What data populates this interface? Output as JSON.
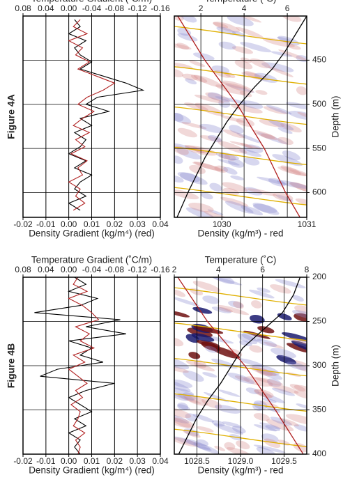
{
  "chart_data": [
    {
      "type": "line",
      "panel_label": "Figure 4A",
      "x2_label": "Temperature Gradient (˚C/m)",
      "x_label": "Density Gradient (kg/m⁴) (red)",
      "x2lim": [
        0.08,
        -0.16
      ],
      "x2ticks": [
        0.08,
        0.04,
        {
          "value": 0,
          "label": "0.00"
        },
        -0.04,
        -0.08,
        -0.12,
        -0.16
      ],
      "xlim": [
        -0.02,
        0.04
      ],
      "xticks": [
        -0.02,
        -0.01,
        {
          "value": 0,
          "label": "0.00"
        },
        0.01,
        0.02,
        0.03,
        0.04
      ],
      "ylim": [
        400,
        628
      ],
      "yticks": [
        450,
        500,
        550,
        600
      ],
      "y_inverted": true,
      "show_ytick_labels": false,
      "grid": true,
      "series": [
        {
          "name": "Temperature Gradient",
          "color": "#000000",
          "axis": "x2",
          "depth": [
            404,
            412,
            420,
            428,
            436,
            444,
            452,
            460,
            468,
            476,
            484,
            492,
            500,
            508,
            516,
            524,
            532,
            540,
            548,
            556,
            564,
            572,
            580,
            588,
            596,
            604,
            612,
            620
          ],
          "values": [
            -0.01,
            -0.02,
            0.0,
            -0.03,
            -0.01,
            -0.02,
            -0.04,
            -0.02,
            -0.06,
            -0.1,
            -0.13,
            -0.05,
            -0.03,
            -0.07,
            -0.02,
            -0.04,
            -0.01,
            -0.03,
            -0.02,
            0.0,
            -0.03,
            -0.01,
            -0.04,
            -0.02,
            -0.01,
            -0.03,
            0.0,
            -0.02
          ]
        },
        {
          "name": "Density Gradient",
          "color": "#b02020",
          "depth": [
            404,
            412,
            420,
            428,
            436,
            444,
            452,
            460,
            468,
            476,
            484,
            492,
            500,
            508,
            516,
            524,
            532,
            540,
            548,
            556,
            564,
            572,
            580,
            588,
            596,
            604,
            612,
            620
          ],
          "values": [
            0.005,
            0.002,
            0.008,
            0.0,
            0.006,
            0.003,
            0.009,
            0.004,
            0.012,
            0.02,
            0.015,
            0.008,
            0.004,
            0.011,
            0.006,
            0.002,
            0.009,
            0.003,
            0.007,
            0.001,
            0.008,
            0.004,
            0.006,
            0.0,
            0.005,
            0.003,
            0.007,
            0.002
          ]
        }
      ]
    },
    {
      "type": "line",
      "x2_label": "Temperature (˚C)",
      "x_label": "Density (kg/m³) - red",
      "y_label": "Depth (m)",
      "x2lim": [
        0.77,
        6.9
      ],
      "x2ticks": [
        2,
        4,
        6
      ],
      "xlim": [
        1029.44,
        1031
      ],
      "xticks": [
        1030,
        1031
      ],
      "ylim": [
        400,
        628
      ],
      "yticks": [
        450,
        500,
        550,
        600
      ],
      "y_inverted": true,
      "show_ytick_labels": true,
      "grid": true,
      "seismic": true,
      "series": [
        {
          "name": "Temperature",
          "color": "#000000",
          "axis": "x2",
          "depth": [
            400,
            420,
            440,
            460,
            480,
            500,
            520,
            540,
            560,
            580,
            600,
            628
          ],
          "values": [
            6.9,
            6.4,
            5.9,
            5.3,
            4.5,
            3.8,
            3.2,
            2.7,
            2.2,
            1.8,
            1.4,
            0.9
          ]
        },
        {
          "name": "Density",
          "color": "#b02020",
          "depth": [
            400,
            450,
            500,
            550,
            600,
            628
          ],
          "values": [
            1029.48,
            1029.8,
            1030.18,
            1030.5,
            1030.75,
            1030.92
          ]
        }
      ]
    },
    {
      "type": "line",
      "panel_label": "Figure 4B",
      "x2_label": "Temperature Gradient (˚C/m)",
      "x_label": "Density Gradient (kg/m⁴) (red)",
      "x2lim": [
        0.08,
        -0.16
      ],
      "x2ticks": [
        0.08,
        0.04,
        {
          "value": 0,
          "label": "0.00"
        },
        -0.04,
        -0.08,
        -0.12,
        -0.16
      ],
      "xlim": [
        -0.02,
        0.04
      ],
      "xticks": [
        -0.02,
        -0.01,
        {
          "value": 0,
          "label": "0.00"
        },
        0.01,
        0.02,
        0.03,
        0.04
      ],
      "ylim": [
        200,
        400
      ],
      "yticks": [
        250,
        300,
        350
      ],
      "y_inverted": true,
      "show_ytick_labels": false,
      "grid": true,
      "series": [
        {
          "name": "Temperature Gradient",
          "color": "#000000",
          "axis": "x2",
          "depth": [
            200,
            208,
            216,
            224,
            232,
            240,
            248,
            256,
            264,
            272,
            280,
            288,
            296,
            304,
            312,
            320,
            328,
            336,
            344,
            352,
            360,
            368,
            376,
            384,
            392,
            400
          ],
          "values": [
            -0.01,
            -0.03,
            0.0,
            -0.05,
            -0.02,
            0.06,
            -0.09,
            -0.03,
            -0.1,
            0.0,
            -0.04,
            -0.02,
            -0.06,
            0.02,
            0.05,
            -0.08,
            -0.03,
            0.0,
            -0.02,
            -0.04,
            -0.01,
            -0.03,
            0.0,
            -0.02,
            -0.01,
            -0.02
          ]
        },
        {
          "name": "Density Gradient",
          "color": "#b02020",
          "depth": [
            200,
            208,
            216,
            224,
            232,
            240,
            248,
            256,
            264,
            272,
            280,
            288,
            296,
            304,
            312,
            320,
            328,
            336,
            344,
            352,
            360,
            368,
            376,
            384,
            392,
            400
          ],
          "values": [
            0.004,
            0.002,
            0.008,
            0.0,
            0.006,
            0.01,
            0.013,
            0.003,
            0.009,
            0.005,
            0.011,
            0.002,
            0.007,
            0.0,
            0.004,
            0.008,
            0.003,
            0.006,
            0.001,
            0.005,
            0.004,
            0.002,
            0.007,
            0.003,
            0.005,
            0.004
          ]
        }
      ]
    },
    {
      "type": "line",
      "x2_label": "Temperature (˚C)",
      "x_label": "Density (kg/m³) - red",
      "y_label": "Depth (m)",
      "x2lim": [
        2,
        8
      ],
      "x2ticks": [
        2,
        4,
        6,
        8
      ],
      "xlim": [
        1028.24,
        1029.76
      ],
      "xticks": [
        1028.5,
        {
          "value": 1029,
          "label": "1029.0"
        },
        1029.5
      ],
      "ylim": [
        200,
        400
      ],
      "yticks": [
        200,
        250,
        300,
        350,
        400
      ],
      "y_inverted": true,
      "show_ytick_labels": true,
      "grid": true,
      "seismic": true,
      "series": [
        {
          "name": "Temperature",
          "color": "#000000",
          "axis": "x2",
          "depth": [
            200,
            220,
            240,
            260,
            280,
            300,
            320,
            340,
            360,
            380,
            400
          ],
          "values": [
            7.7,
            7.4,
            6.9,
            6.0,
            5.1,
            4.6,
            4.1,
            3.5,
            3.0,
            2.6,
            2.2
          ]
        },
        {
          "name": "Density",
          "color": "#b02020",
          "depth": [
            200,
            250,
            300,
            350,
            400
          ],
          "values": [
            1028.28,
            1028.62,
            1029.05,
            1029.4,
            1029.72
          ]
        }
      ]
    }
  ]
}
